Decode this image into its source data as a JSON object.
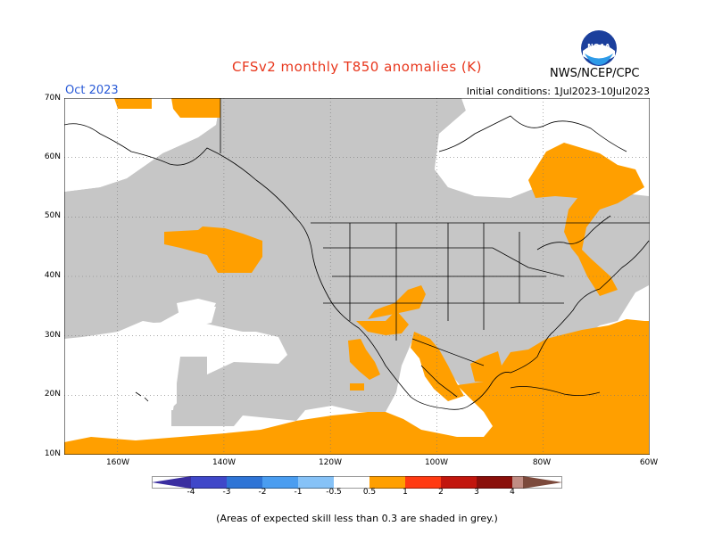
{
  "title": "CFSv2 monthly T850 anomalies (K)",
  "month": "Oct 2023",
  "initial_conditions": "Initial conditions: 1Jul2023-10Jul2023",
  "agency": "NWS/NCEP/CPC",
  "logo_text": "NOAA",
  "footnote": "(Areas of expected skill less than 0.3 are shaded in grey.)",
  "lat_labels": [
    "70N",
    "60N",
    "50N",
    "40N",
    "30N",
    "20N",
    "10N"
  ],
  "lon_labels": [
    "160W",
    "140W",
    "120W",
    "100W",
    "80W",
    "60W"
  ],
  "colorbar": {
    "labels": [
      "-4",
      "-3",
      "-2",
      "-1",
      "-0.5",
      "0.5",
      "1",
      "2",
      "3",
      "4"
    ],
    "colors": [
      "#3a2ea0",
      "#3f47c9",
      "#2e74d6",
      "#4a9df0",
      "#86c2f7",
      "#ffffff",
      "#ff9f00",
      "#ff3a12",
      "#c2160d",
      "#8a0f0a",
      "#c08d84",
      "#7c4a3c"
    ]
  },
  "colors": {
    "land_grey": "#c6c6c6",
    "anomaly_orange": "#ff9f00",
    "ocean_white": "#ffffff"
  }
}
